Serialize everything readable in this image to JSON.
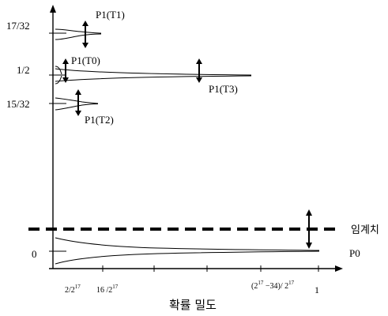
{
  "y_axis": {
    "ticks": [
      "17/32",
      "1/2",
      "15/32",
      "0"
    ]
  },
  "x_axis": {
    "tick_label_1_base": "2/2",
    "tick_label_1_exp": "17",
    "tick_label_2_base": "16 /2",
    "tick_label_2_exp": "17",
    "tick_label_3_pre": "(2",
    "tick_label_3_exp": "17",
    "tick_label_3_mid": " −34)/ 2",
    "tick_label_3_exp2": "17",
    "end_label": "1",
    "title": "확률 밀도"
  },
  "curves": {
    "p1_t1": "P1(T1)",
    "p1_t0": "P1(T0)",
    "p1_t3": "P1(T3)",
    "p1_t2": "P1(T2)",
    "p0": "P0"
  },
  "threshold_label": "임계치"
}
